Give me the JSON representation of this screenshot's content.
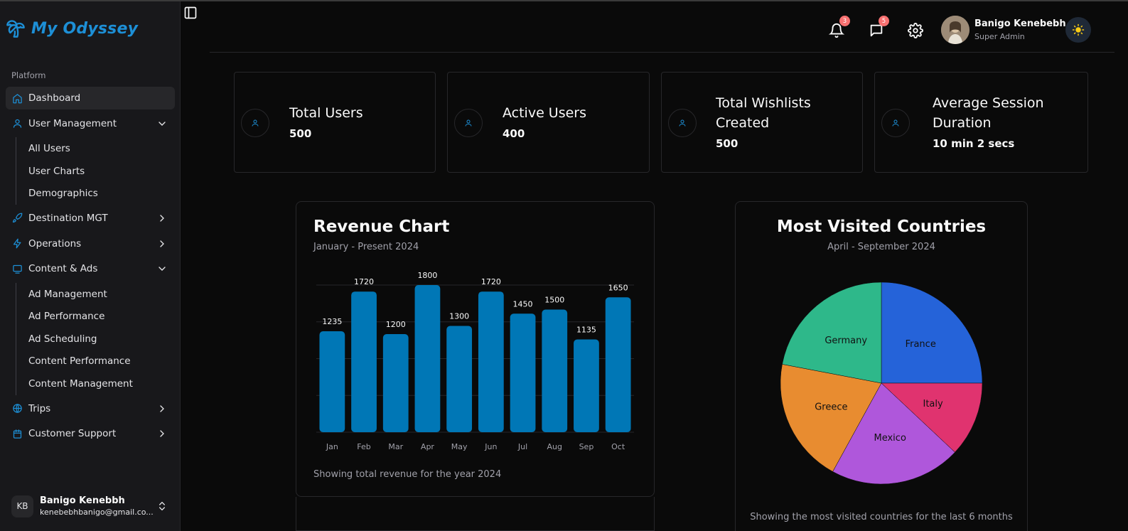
{
  "app": {
    "title": "My Odyssey"
  },
  "sidebar": {
    "section_label": "Platform",
    "items": [
      {
        "label": "Dashboard",
        "icon": "home-icon",
        "active": true
      },
      {
        "label": "User Management",
        "icon": "user-icon",
        "expanded": true,
        "children": [
          "All Users",
          "User Charts",
          "Demographics"
        ]
      },
      {
        "label": "Destination MGT",
        "icon": "rocket-icon",
        "expanded": false
      },
      {
        "label": "Operations",
        "icon": "zap-icon",
        "expanded": false
      },
      {
        "label": "Content & Ads",
        "icon": "monitor-icon",
        "expanded": true,
        "children": [
          "Ad Management",
          "Ad Performance",
          "Ad Scheduling",
          "Content Performance",
          "Content Management"
        ]
      },
      {
        "label": "Trips",
        "icon": "globe-icon",
        "expanded": false
      },
      {
        "label": "Customer Support",
        "icon": "calendar-icon",
        "expanded": false
      }
    ],
    "user": {
      "initials": "KB",
      "name": "Banigo Kenebbh",
      "email": "kenebebhbanigo@gmail.co..."
    }
  },
  "header": {
    "notifications_count": "3",
    "messages_count": "5",
    "user_name": "Banigo Kenebebh",
    "user_role": "Super Admin"
  },
  "stats": [
    {
      "label_lines": [
        "Total Users"
      ],
      "value": "500"
    },
    {
      "label_lines": [
        "Active Users"
      ],
      "value": "400"
    },
    {
      "label_lines": [
        "Total Wishlists",
        "Created"
      ],
      "value": "500"
    },
    {
      "label_lines": [
        "Average Session",
        "Duration"
      ],
      "value": "10 min 2 secs"
    }
  ],
  "colors": {
    "accent": "#1d8fd6",
    "bar": "#0077b6",
    "pie": {
      "France": "#2563d9",
      "Italy": "#e0336f",
      "Mexico": "#af57db",
      "Greece": "#e88c30",
      "Germany": "#2eb88a"
    }
  },
  "revenue_card": {
    "title": "Revenue Chart",
    "subtitle": "January - Present 2024",
    "footer": "Showing total revenue for the year 2024"
  },
  "countries_card": {
    "title": "Most Visited Countries",
    "subtitle": "April - September 2024",
    "footer": "Showing the most visited countries for the last 6 months"
  },
  "chart_data": [
    {
      "type": "bar",
      "title": "Revenue Chart",
      "subtitle": "January - Present 2024",
      "categories": [
        "Jan",
        "Feb",
        "Mar",
        "Apr",
        "May",
        "Jun",
        "Jul",
        "Aug",
        "Sep",
        "Oct"
      ],
      "values": [
        1235,
        1720,
        1200,
        1800,
        1300,
        1720,
        1450,
        1500,
        1135,
        1650
      ],
      "xlabel": "",
      "ylabel": "",
      "ylim": [
        0,
        1800
      ],
      "grid": true,
      "data_labels": true
    },
    {
      "type": "pie",
      "title": "Most Visited Countries",
      "subtitle": "April - September 2024",
      "labels": [
        "France",
        "Italy",
        "Mexico",
        "Greece",
        "Germany"
      ],
      "values": [
        25,
        12,
        21,
        20,
        22
      ]
    }
  ]
}
